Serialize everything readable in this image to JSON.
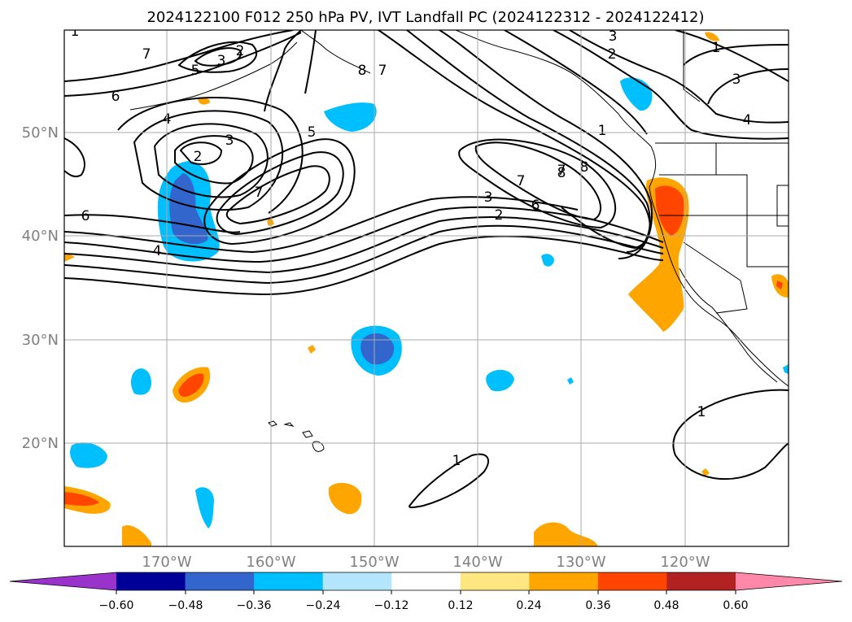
{
  "title": "2024122100 F012 250 hPa PV, IVT Landfall PC (2024122312 - 2024122412)",
  "lon_labels": [
    "170°W",
    "160°W",
    "150°W",
    "140°W",
    "130°W",
    "120°W"
  ],
  "lat_labels": [
    "50°N",
    "40°N",
    "30°N",
    "20°N"
  ],
  "colorbar": {
    "ticks": [
      "−0.60",
      "−0.48",
      "−0.36",
      "−0.24",
      "−0.12",
      "0.12",
      "0.24",
      "0.36",
      "0.48",
      "0.60"
    ],
    "colors": [
      "#9933cc",
      "#000099",
      "#3366cc",
      "#00bfff",
      "#b3e5fc",
      "#ffffff",
      "#ffe680",
      "#ffa500",
      "#ff4500",
      "#b22222",
      "#ff88aa"
    ]
  },
  "contour_labels": [
    "8",
    "7",
    "2",
    "3",
    "5",
    "7",
    "6",
    "4",
    "3",
    "2",
    "7",
    "5",
    "6",
    "4",
    "8",
    "7",
    "3",
    "2",
    "7",
    "8",
    "6",
    "3",
    "2",
    "1",
    "1",
    "3",
    "4",
    "1",
    "1",
    "1"
  ]
}
